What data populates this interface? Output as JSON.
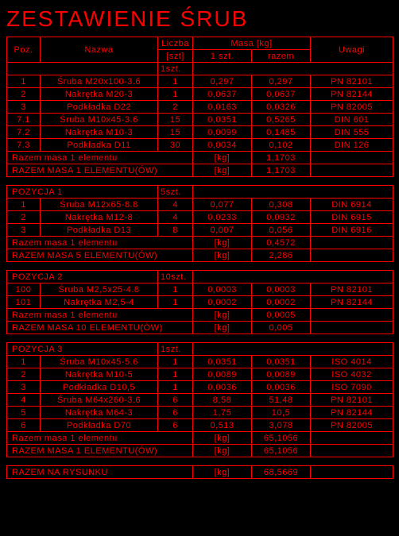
{
  "title": "ZESTAWIENIE ŚRUB",
  "unit": "[kg]",
  "header": {
    "poz": "Poz.",
    "nazwa": "Nazwa",
    "liczba": "Liczba",
    "szt": "[szt]",
    "masa": "Masa [kg]",
    "masa1": "1 szt.",
    "masaR": "razem",
    "uwagi": "Uwagi"
  },
  "sec0": {
    "qty": "1szt.",
    "rows": [
      {
        "p": "1",
        "n": "Śruba M20x100-3.6",
        "l": "1",
        "m1": "0,297",
        "mr": "0,297",
        "u": "PN 82101"
      },
      {
        "p": "2",
        "n": "Nakrętka M20-3",
        "l": "1",
        "m1": "0,0637",
        "mr": "0,0637",
        "u": "PN 82144"
      },
      {
        "p": "3",
        "n": "Podkładka D22",
        "l": "2",
        "m1": "0,0163",
        "mr": "0,0326",
        "u": "PN 82005"
      },
      {
        "p": "7.1",
        "n": "Śruba M10x45-3.6",
        "l": "15",
        "m1": "0,0351",
        "mr": "0,5265",
        "u": "DIN 601"
      },
      {
        "p": "7.2",
        "n": "Nakrętka M10-3",
        "l": "15",
        "m1": "0,0099",
        "mr": "0,1485",
        "u": "DIN 555"
      },
      {
        "p": "7.3",
        "n": "Podkładka D11",
        "l": "30",
        "m1": "0,0034",
        "mr": "0,102",
        "u": "DIN 126"
      }
    ],
    "sum1_l": "Razem masa 1 elementu",
    "sum1_v": "1,1703",
    "sumN_l": "RAZEM MASA 1 ELEMENTU(ÓW)",
    "sumN_v": "1,1703"
  },
  "sec1": {
    "head": "POZYCJA 1",
    "qty": "5szt.",
    "rows": [
      {
        "p": "1",
        "n": "Śruba M12x65-8.8",
        "l": "4",
        "m1": "0,077",
        "mr": "0,308",
        "u": "DIN 6914"
      },
      {
        "p": "2",
        "n": "Nakrętka M12-8",
        "l": "4",
        "m1": "0,0233",
        "mr": "0,0932",
        "u": "DIN 6915"
      },
      {
        "p": "3",
        "n": "Podkładka D13",
        "l": "8",
        "m1": "0,007",
        "mr": "0,056",
        "u": "DIN 6916"
      }
    ],
    "sum1_l": "Razem masa 1 elementu",
    "sum1_v": "0,4572",
    "sumN_l": "RAZEM MASA 5 ELEMENTU(ÓW)",
    "sumN_v": "2,286"
  },
  "sec2": {
    "head": "POZYCJA 2",
    "qty": "10szt.",
    "rows": [
      {
        "p": "100",
        "n": "Śruba M2,5x25-4.8",
        "l": "1",
        "m1": "0,0003",
        "mr": "0,0003",
        "u": "PN 82101"
      },
      {
        "p": "101",
        "n": "Nakrętka M2,5-4",
        "l": "1",
        "m1": "0,0002",
        "mr": "0,0002",
        "u": "PN 82144"
      }
    ],
    "sum1_l": "Razem masa 1 elementu",
    "sum1_v": "0,0005",
    "sumN_l": "RAZEM MASA 10 ELEMENTU(ÓW)",
    "sumN_v": "0,005"
  },
  "sec3": {
    "head": "POZYCJA 3",
    "qty": "1szt.",
    "rows": [
      {
        "p": "1",
        "n": "Śruba M10x45-5.6",
        "l": "1",
        "m1": "0,0351",
        "mr": "0,0351",
        "u": "ISO 4014"
      },
      {
        "p": "2",
        "n": "Nakrętka M10-5",
        "l": "1",
        "m1": "0,0089",
        "mr": "0,0089",
        "u": "ISO 4032"
      },
      {
        "p": "3",
        "n": "Podkładka D10,5",
        "l": "1",
        "m1": "0,0036",
        "mr": "0,0036",
        "u": "ISO 7090"
      },
      {
        "p": "4",
        "n": "Śruba M64x260-3.6",
        "l": "6",
        "m1": "8,58",
        "mr": "51,48",
        "u": "PN 82101"
      },
      {
        "p": "5",
        "n": "Nakrętka M64-3",
        "l": "6",
        "m1": "1,75",
        "mr": "10,5",
        "u": "PN 82144"
      },
      {
        "p": "6",
        "n": "Podkładka D70",
        "l": "6",
        "m1": "0,513",
        "mr": "3,078",
        "u": "PN 82005"
      }
    ],
    "sum1_l": "Razem masa 1 elementu",
    "sum1_v": "65,1056",
    "sumN_l": "RAZEM MASA 1 ELEMENTU(ÓW)",
    "sumN_v": "65,1056"
  },
  "grand": {
    "label": "RAZEM NA RYSUNKU",
    "value": "68,5669"
  }
}
